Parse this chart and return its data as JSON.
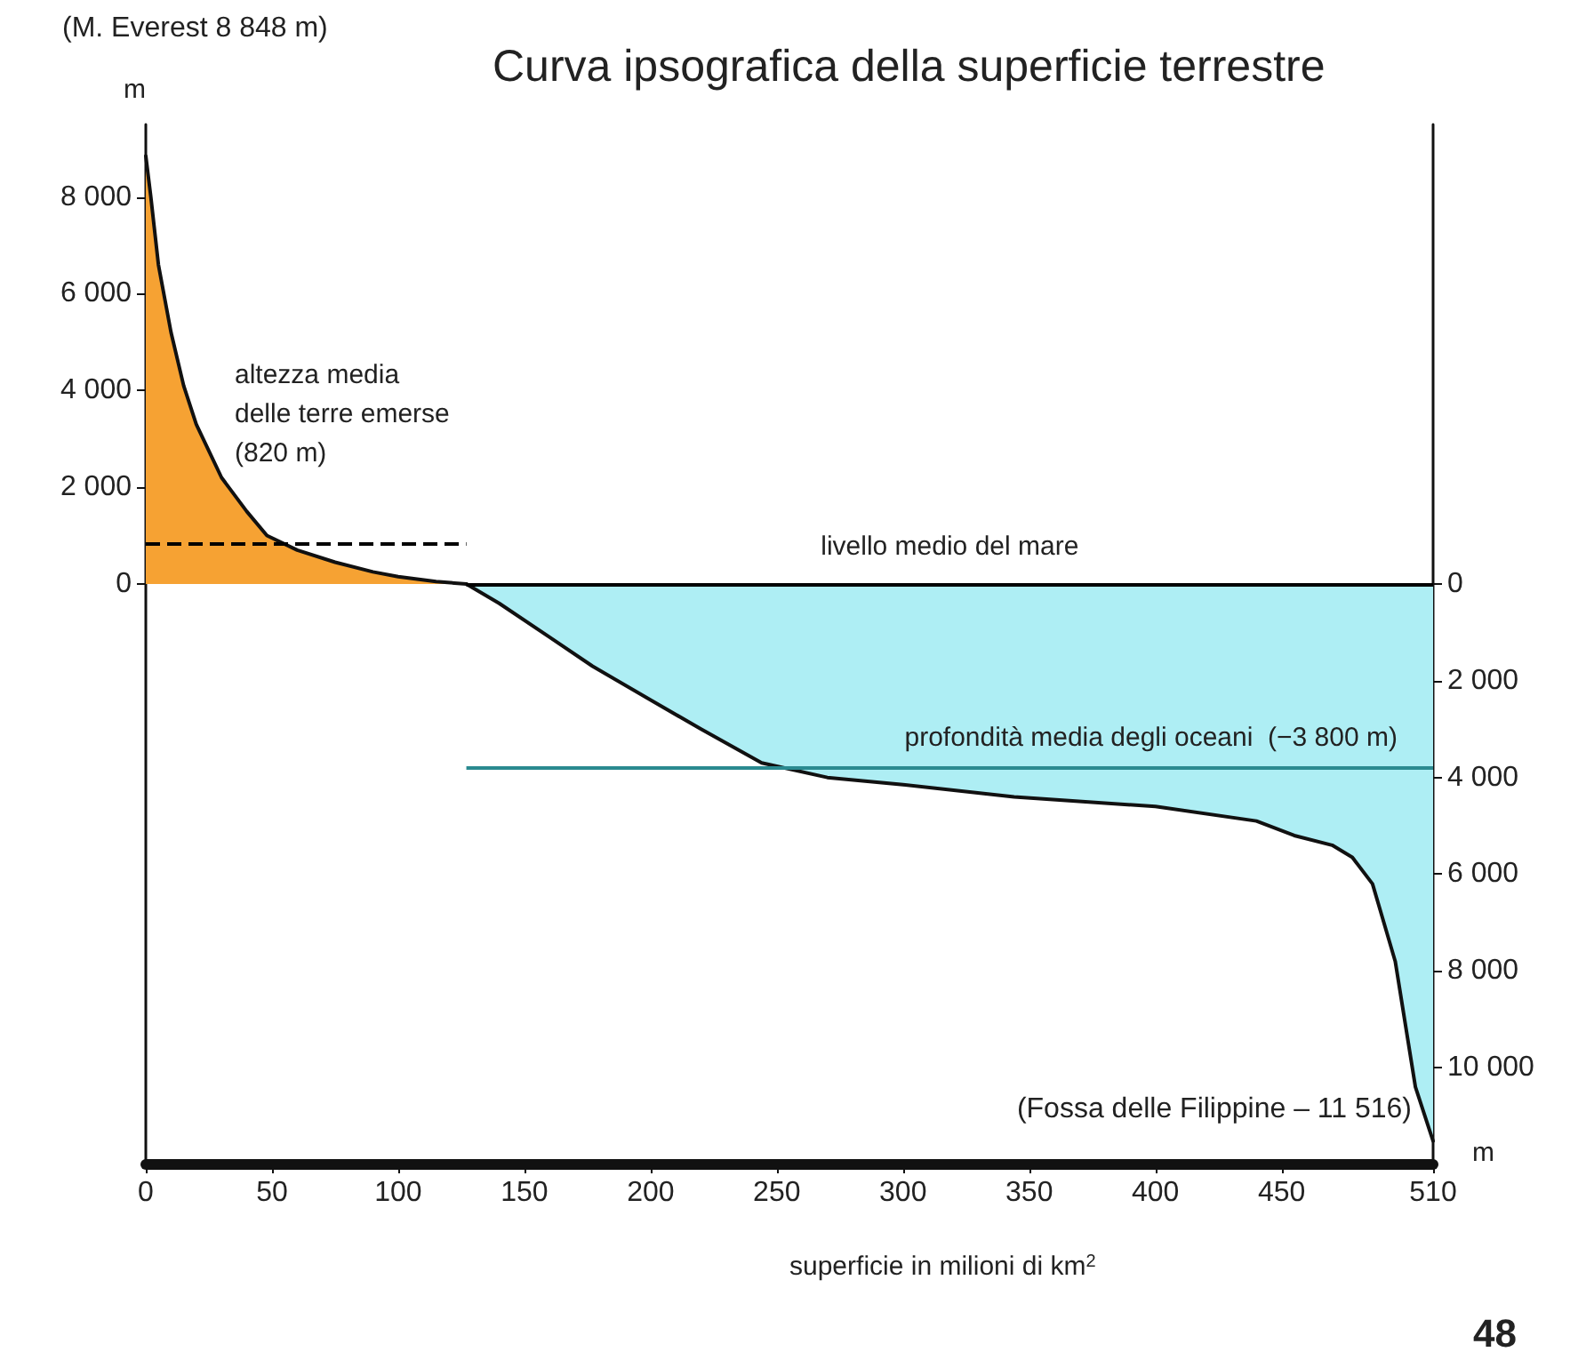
{
  "chart_data": {
    "type": "area",
    "title": "Curva ipsografica della superficie terrestre",
    "xlabel": "superficie in milioni di km$^{2}$",
    "ylabel": "m",
    "y2label": "m",
    "series": [
      {
        "color": "#f6a233",
        "x": [
          0,
          2,
          5,
          10,
          15,
          20,
          30,
          40,
          48,
          60,
          75,
          90,
          100,
          115,
          127
        ],
        "values": [
          8848,
          8000,
          6600,
          5200,
          4100,
          3300,
          2200,
          1500,
          1000,
          700,
          450,
          250,
          150,
          50,
          0
        ]
      },
      {
        "color": "#aeeef4",
        "axis": "y2",
        "x": [
          127,
          140,
          160,
          177,
          200,
          220,
          244,
          270,
          300,
          344,
          400,
          440,
          455,
          470,
          478,
          486,
          495,
          503,
          510
        ],
        "values": [
          0,
          400,
          1100,
          1700,
          2400,
          3000,
          3700,
          4000,
          4150,
          4400,
          4600,
          4900,
          5200,
          5400,
          5650,
          6200,
          7800,
          10400,
          11516
        ]
      }
    ],
    "xlim": [
      0,
      510
    ],
    "xticks": [
      0,
      50,
      100,
      150,
      200,
      250,
      300,
      350,
      400,
      450,
      510
    ],
    "ylim": [
      -12000,
      9500
    ],
    "yticks": [
      {
        "value": 0,
        "label": "0"
      },
      {
        "value": 2000,
        "label": "2 000"
      },
      {
        "value": 4000,
        "label": "4 000"
      },
      {
        "value": 6000,
        "label": "6 000"
      },
      {
        "value": 8000,
        "label": "8 000"
      }
    ],
    "y2lim": [
      12000,
      -9500
    ],
    "y2ticks": [
      {
        "value": 0,
        "label": "0"
      },
      {
        "value": 2000,
        "label": "2 000"
      },
      {
        "value": 4000,
        "label": "4 000"
      },
      {
        "value": 6000,
        "label": "6 000"
      },
      {
        "value": 8000,
        "label": "8 000"
      },
      {
        "value": 10000,
        "label": "10 000"
      }
    ],
    "ref_lines": [
      {
        "axis": "y",
        "value": 820,
        "label": "altezza media delle terre emerse (820 m)",
        "line_style": "dashed",
        "color": "#000000"
      },
      {
        "axis": "y2",
        "value": 0,
        "label": "livello medio del mare",
        "line_style": "solid",
        "color": "#000000"
      },
      {
        "axis": "y2",
        "value": 3800,
        "label": "profondità media degli oceani  (−3 800 m)",
        "line_style": "solid",
        "color": "#2a8a90"
      }
    ],
    "annotations": [
      "(M. Everest 8 848 m)",
      {
        "text": "(Fossa delle Filippine – 11 516)",
        "x": 510,
        "y": -11516
      },
      "48"
    ],
    "grid": false,
    "marker": "none",
    "line_style": "solid"
  }
}
